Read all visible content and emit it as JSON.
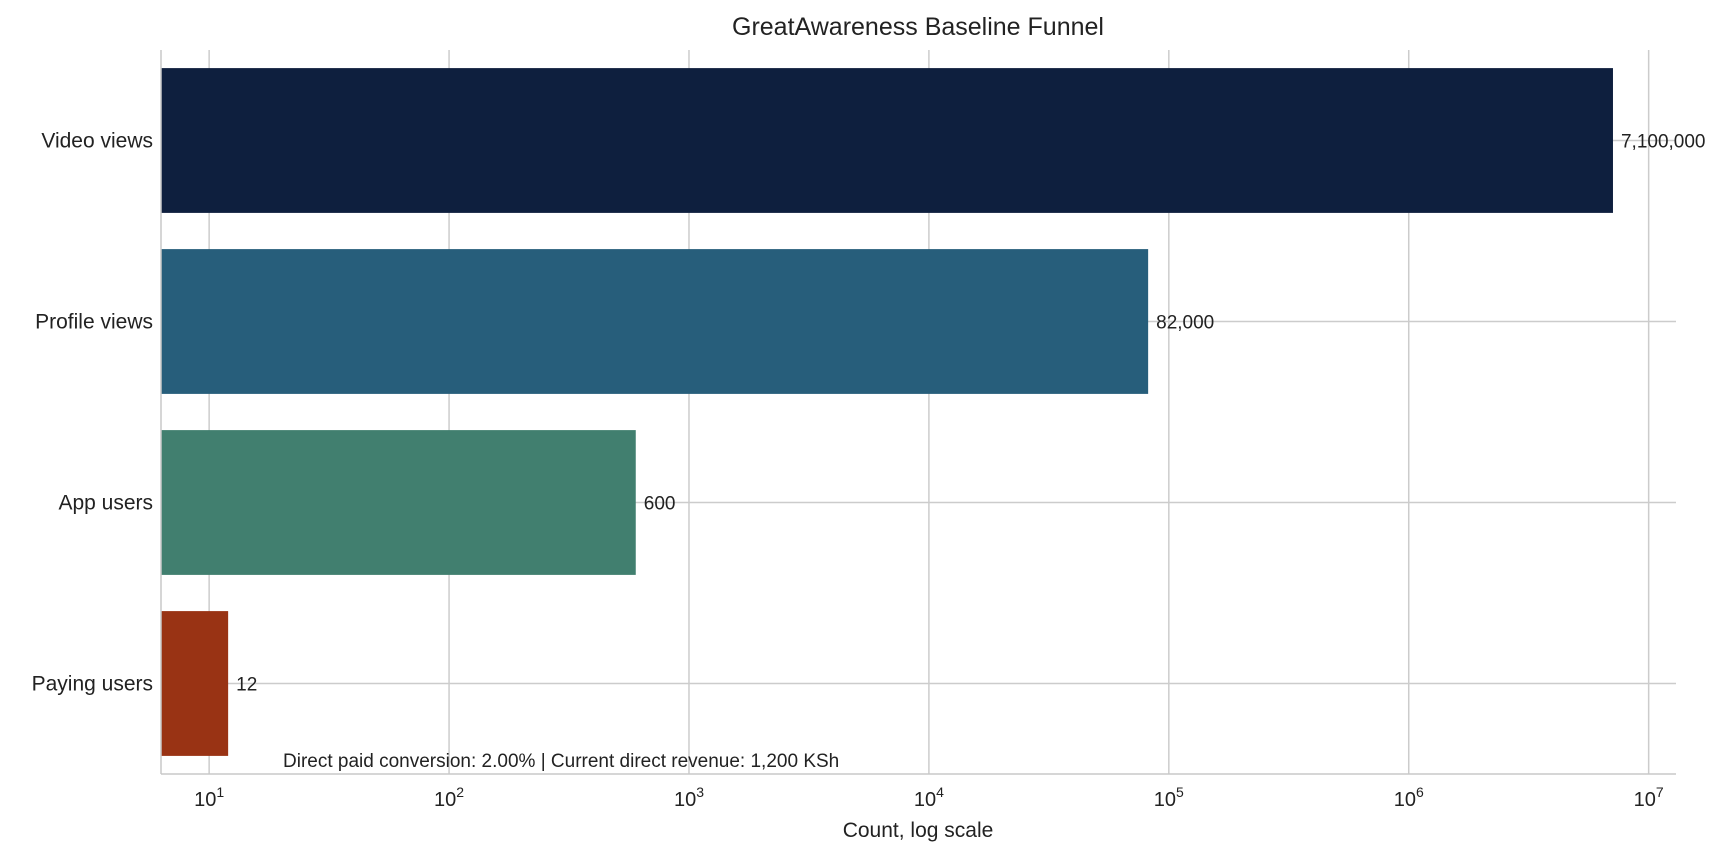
{
  "chart_data": {
    "type": "bar",
    "orientation": "horizontal",
    "title": "GreatAwareness Baseline Funnel",
    "xlabel": "Count, log scale",
    "ylabel": "",
    "xscale": "log",
    "xlim": [
      6.3,
      13000000
    ],
    "x_ticks": [
      10,
      100,
      1000,
      10000,
      100000,
      1000000,
      10000000
    ],
    "x_tick_labels": [
      {
        "base": "10",
        "exp": "1"
      },
      {
        "base": "10",
        "exp": "2"
      },
      {
        "base": "10",
        "exp": "3"
      },
      {
        "base": "10",
        "exp": "4"
      },
      {
        "base": "10",
        "exp": "5"
      },
      {
        "base": "10",
        "exp": "6"
      },
      {
        "base": "10",
        "exp": "7"
      }
    ],
    "categories": [
      "Video views",
      "Profile views",
      "App users",
      "Paying users"
    ],
    "values": [
      7100000,
      82000,
      600,
      12
    ],
    "value_labels": [
      "7,100,000",
      "82,000",
      "600",
      "12"
    ],
    "colors": [
      "#0e1f3e",
      "#275e7b",
      "#417f6f",
      "#993314"
    ],
    "grid": true,
    "annotation": "Direct paid conversion: 2.00% | Current direct revenue: 1,200 KSh"
  }
}
